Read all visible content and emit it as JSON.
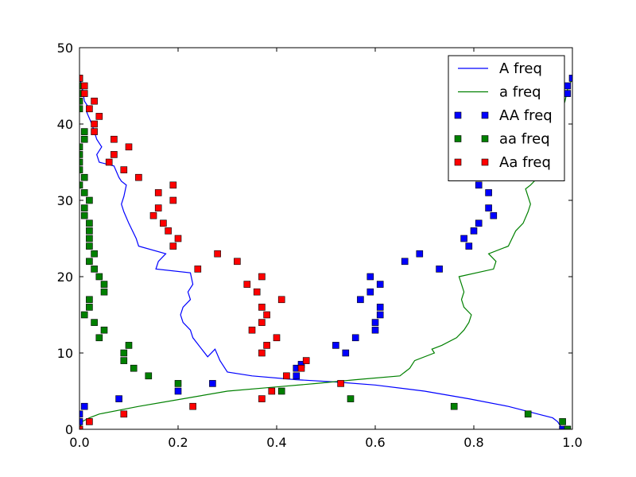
{
  "chart_data": {
    "type": "line",
    "title": "",
    "xlabel": "",
    "ylabel": "",
    "xlim": [
      0,
      1
    ],
    "ylim": [
      0,
      50
    ],
    "xticks": [
      "0.0",
      "0.2",
      "0.4",
      "0.6",
      "0.8",
      "1.0"
    ],
    "yticks": [
      "0",
      "10",
      "20",
      "30",
      "40",
      "50"
    ],
    "grid": false,
    "legend_position": "top-right",
    "series": [
      {
        "name": "A freq",
        "kind": "line",
        "color": "#0000ff",
        "points": [
          [
            0.98,
            0
          ],
          [
            0.97,
            1
          ],
          [
            0.96,
            1.5
          ],
          [
            0.93,
            2
          ],
          [
            0.87,
            3
          ],
          [
            0.79,
            4
          ],
          [
            0.7,
            5
          ],
          [
            0.6,
            5.8
          ],
          [
            0.52,
            6.2
          ],
          [
            0.44,
            6.5
          ],
          [
            0.35,
            7
          ],
          [
            0.3,
            7.5
          ],
          [
            0.285,
            9
          ],
          [
            0.275,
            10.5
          ],
          [
            0.26,
            9.5
          ],
          [
            0.23,
            12
          ],
          [
            0.225,
            13
          ],
          [
            0.21,
            14
          ],
          [
            0.205,
            15
          ],
          [
            0.21,
            16
          ],
          [
            0.225,
            17
          ],
          [
            0.22,
            18
          ],
          [
            0.23,
            19
          ],
          [
            0.225,
            20.5
          ],
          [
            0.155,
            21
          ],
          [
            0.16,
            22
          ],
          [
            0.175,
            23
          ],
          [
            0.12,
            24
          ],
          [
            0.115,
            25
          ],
          [
            0.1,
            27
          ],
          [
            0.09,
            28.5
          ],
          [
            0.085,
            29.5
          ],
          [
            0.09,
            30.5
          ],
          [
            0.095,
            32
          ],
          [
            0.085,
            32.5
          ],
          [
            0.08,
            33
          ],
          [
            0.07,
            34.5
          ],
          [
            0.04,
            35
          ],
          [
            0.035,
            36
          ],
          [
            0.045,
            37
          ],
          [
            0.035,
            38
          ],
          [
            0.03,
            39
          ],
          [
            0.025,
            40
          ],
          [
            0.015,
            41.5
          ],
          [
            0.02,
            42
          ],
          [
            0.01,
            43
          ],
          [
            0.005,
            45
          ],
          [
            0.0,
            46
          ]
        ]
      },
      {
        "name": "a freq",
        "kind": "line",
        "color": "#008000",
        "points": [
          [
            0.0,
            0
          ],
          [
            0.005,
            1
          ],
          [
            0.02,
            1.5
          ],
          [
            0.04,
            2
          ],
          [
            0.12,
            3
          ],
          [
            0.21,
            4
          ],
          [
            0.3,
            5
          ],
          [
            0.39,
            5.5
          ],
          [
            0.48,
            6
          ],
          [
            0.56,
            6.5
          ],
          [
            0.65,
            7
          ],
          [
            0.67,
            8
          ],
          [
            0.68,
            9
          ],
          [
            0.72,
            10
          ],
          [
            0.715,
            10.5
          ],
          [
            0.735,
            11
          ],
          [
            0.765,
            12
          ],
          [
            0.78,
            13
          ],
          [
            0.79,
            14
          ],
          [
            0.795,
            15
          ],
          [
            0.78,
            16
          ],
          [
            0.775,
            17
          ],
          [
            0.78,
            18
          ],
          [
            0.775,
            19
          ],
          [
            0.77,
            20
          ],
          [
            0.84,
            21
          ],
          [
            0.845,
            22
          ],
          [
            0.83,
            23
          ],
          [
            0.87,
            24
          ],
          [
            0.885,
            26
          ],
          [
            0.9,
            27
          ],
          [
            0.91,
            28.5
          ],
          [
            0.915,
            29.5
          ],
          [
            0.91,
            30.5
          ],
          [
            0.905,
            31.5
          ],
          [
            0.915,
            32
          ],
          [
            0.93,
            33
          ],
          [
            0.94,
            34
          ],
          [
            0.955,
            35
          ],
          [
            0.965,
            36
          ],
          [
            0.96,
            38
          ],
          [
            0.97,
            39
          ],
          [
            0.975,
            40
          ],
          [
            0.98,
            42
          ],
          [
            0.985,
            43
          ],
          [
            0.99,
            44.5
          ],
          [
            1.0,
            46
          ]
        ]
      },
      {
        "name": "AA freq",
        "kind": "scatter",
        "color": "#0000ff",
        "points": [
          [
            0.0,
            0
          ],
          [
            0.0,
            1
          ],
          [
            0.0,
            2
          ],
          [
            0.01,
            3
          ],
          [
            0.08,
            4
          ],
          [
            0.2,
            5
          ],
          [
            0.27,
            6
          ],
          [
            0.44,
            7
          ],
          [
            0.44,
            8
          ],
          [
            0.45,
            8.5
          ],
          [
            0.52,
            11
          ],
          [
            0.54,
            10
          ],
          [
            0.56,
            12
          ],
          [
            0.57,
            17
          ],
          [
            0.59,
            18
          ],
          [
            0.59,
            20
          ],
          [
            0.6,
            14
          ],
          [
            0.6,
            13
          ],
          [
            0.61,
            15
          ],
          [
            0.61,
            16
          ],
          [
            0.61,
            19
          ],
          [
            0.66,
            22
          ],
          [
            0.69,
            23
          ],
          [
            0.73,
            21
          ],
          [
            0.79,
            24
          ],
          [
            0.78,
            25
          ],
          [
            0.8,
            26
          ],
          [
            0.81,
            27
          ],
          [
            0.83,
            29
          ],
          [
            0.84,
            28
          ],
          [
            0.83,
            31
          ],
          [
            0.81,
            32
          ],
          [
            0.87,
            33
          ],
          [
            0.97,
            42
          ],
          [
            0.99,
            44
          ],
          [
            0.99,
            45
          ],
          [
            1.0,
            46
          ],
          [
            0.98,
            0
          ],
          [
            0.99,
            0
          ]
        ]
      },
      {
        "name": "aa freq",
        "kind": "scatter",
        "color": "#008000",
        "points": [
          [
            0.0,
            46
          ],
          [
            0.0,
            45
          ],
          [
            0.0,
            44
          ],
          [
            0.0,
            43
          ],
          [
            0.0,
            42
          ],
          [
            0.0,
            37
          ],
          [
            0.0,
            36
          ],
          [
            0.0,
            35
          ],
          [
            0.0,
            34
          ],
          [
            0.0,
            32
          ],
          [
            0.01,
            39
          ],
          [
            0.01,
            38
          ],
          [
            0.01,
            33
          ],
          [
            0.01,
            31
          ],
          [
            0.01,
            29
          ],
          [
            0.01,
            28
          ],
          [
            0.01,
            15
          ],
          [
            0.02,
            30
          ],
          [
            0.02,
            27
          ],
          [
            0.02,
            26
          ],
          [
            0.02,
            25
          ],
          [
            0.02,
            24
          ],
          [
            0.02,
            22
          ],
          [
            0.02,
            17
          ],
          [
            0.02,
            16
          ],
          [
            0.03,
            23
          ],
          [
            0.03,
            21
          ],
          [
            0.03,
            14
          ],
          [
            0.04,
            20
          ],
          [
            0.04,
            12
          ],
          [
            0.05,
            19
          ],
          [
            0.05,
            18
          ],
          [
            0.05,
            13
          ],
          [
            0.09,
            10
          ],
          [
            0.09,
            9
          ],
          [
            0.1,
            11
          ],
          [
            0.11,
            8
          ],
          [
            0.14,
            7
          ],
          [
            0.2,
            6
          ],
          [
            0.41,
            5
          ],
          [
            0.55,
            4
          ],
          [
            0.76,
            3
          ],
          [
            0.91,
            2
          ],
          [
            0.98,
            1
          ],
          [
            0.99,
            0
          ]
        ]
      },
      {
        "name": "Aa freq",
        "kind": "scatter",
        "color": "#ff0000",
        "points": [
          [
            0.0,
            0
          ],
          [
            0.0,
            46
          ],
          [
            0.01,
            45
          ],
          [
            0.01,
            44
          ],
          [
            0.03,
            43
          ],
          [
            0.02,
            42
          ],
          [
            0.04,
            41
          ],
          [
            0.03,
            40
          ],
          [
            0.03,
            39
          ],
          [
            0.07,
            38
          ],
          [
            0.1,
            37
          ],
          [
            0.07,
            36
          ],
          [
            0.06,
            35
          ],
          [
            0.09,
            34
          ],
          [
            0.12,
            33
          ],
          [
            0.19,
            32
          ],
          [
            0.16,
            31
          ],
          [
            0.19,
            30
          ],
          [
            0.16,
            29
          ],
          [
            0.15,
            28
          ],
          [
            0.17,
            27
          ],
          [
            0.18,
            26
          ],
          [
            0.2,
            25
          ],
          [
            0.19,
            24
          ],
          [
            0.28,
            23
          ],
          [
            0.32,
            22
          ],
          [
            0.24,
            21
          ],
          [
            0.37,
            20
          ],
          [
            0.34,
            19
          ],
          [
            0.36,
            18
          ],
          [
            0.41,
            17
          ],
          [
            0.37,
            16
          ],
          [
            0.38,
            15
          ],
          [
            0.37,
            14
          ],
          [
            0.35,
            13
          ],
          [
            0.4,
            12
          ],
          [
            0.38,
            11
          ],
          [
            0.37,
            10
          ],
          [
            0.46,
            9
          ],
          [
            0.45,
            8
          ],
          [
            0.42,
            7
          ],
          [
            0.53,
            6
          ],
          [
            0.39,
            5
          ],
          [
            0.37,
            4
          ],
          [
            0.23,
            3
          ],
          [
            0.09,
            2
          ],
          [
            0.02,
            1
          ]
        ]
      }
    ]
  }
}
